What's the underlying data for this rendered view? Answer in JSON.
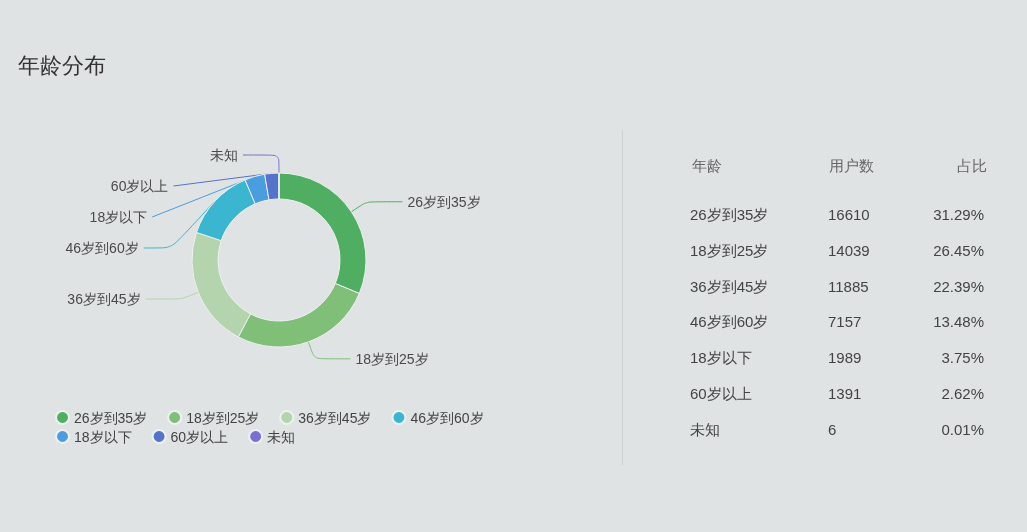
{
  "chart_data": [
    {
      "type": "donut",
      "title": "年龄分布",
      "categories": [
        "26岁到35岁",
        "18岁到25岁",
        "36岁到45岁",
        "46岁到60岁",
        "18岁以下",
        "60岁以上",
        "未知"
      ],
      "values": [
        31.29,
        26.45,
        22.39,
        13.48,
        3.75,
        2.62,
        0.01
      ],
      "colors": [
        "#4fae62",
        "#7fbf78",
        "#b4d4ae",
        "#3bb6d0",
        "#4a9ee0",
        "#5572cc",
        "#7b70d0"
      ],
      "legend": "bottom left"
    },
    {
      "type": "other",
      "xlabel": "年龄",
      "categories": [
        "26岁到35岁",
        "18岁到25岁",
        "36岁到45岁",
        "46岁到60岁",
        "18岁以下",
        "60岁以上",
        "未知"
      ],
      "data_labels": true,
      "series": [
        {
          "name": "用户数",
          "values": [
            16610,
            14039,
            11885,
            7157,
            1989,
            1391,
            6
          ]
        },
        {
          "name": "占比",
          "values": [
            31.29,
            26.45,
            22.39,
            13.48,
            3.75,
            2.62,
            0.01
          ],
          "value_labels": [
            "31.29%",
            "26.45%",
            "22.39%",
            "13.48%",
            "3.75%",
            "2.62%",
            "0.01%"
          ]
        }
      ]
    }
  ]
}
